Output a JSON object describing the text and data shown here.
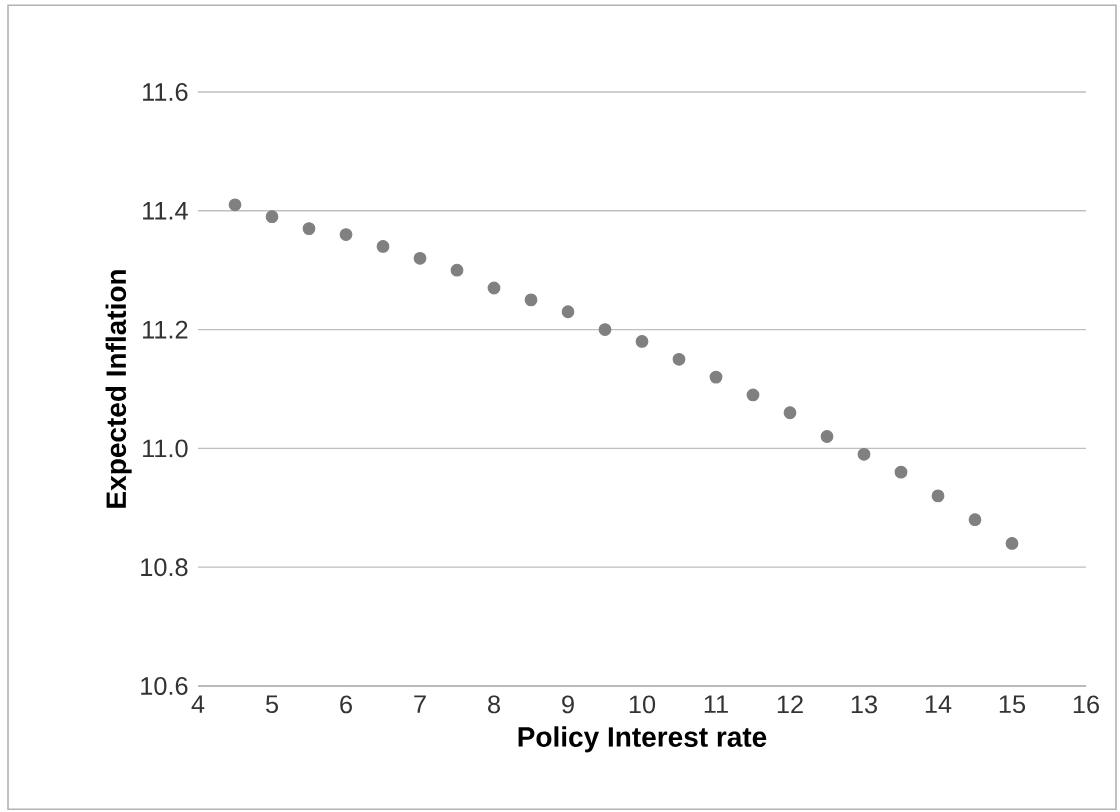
{
  "chart_data": {
    "type": "scatter",
    "xlabel": "Policy Interest rate",
    "ylabel": "Expected Inflation",
    "x": [
      4.5,
      5,
      5.5,
      6,
      6.5,
      7,
      7.5,
      8,
      8.5,
      9,
      9.5,
      10,
      10.5,
      11,
      11.5,
      12,
      12.5,
      13,
      13.5,
      14,
      14.5,
      15
    ],
    "series": [
      {
        "color": "#808080",
        "values": [
          11.41,
          11.39,
          11.37,
          11.36,
          11.34,
          11.32,
          11.3,
          11.27,
          11.25,
          11.23,
          11.2,
          11.18,
          11.15,
          11.12,
          11.09,
          11.06,
          11.02,
          10.99,
          10.96,
          10.92,
          10.88,
          10.84
        ]
      }
    ],
    "xlim": [
      4,
      16
    ],
    "xticks": [
      4,
      5,
      6,
      7,
      8,
      9,
      10,
      11,
      12,
      13,
      14,
      15,
      16
    ],
    "ylim": [
      10.6,
      11.6
    ],
    "yticks": [
      10.6,
      10.8,
      {
        "value": 11,
        "label": "11.0"
      },
      11.2,
      11.4,
      11.6
    ],
    "grid": "y",
    "marker": "circle"
  }
}
